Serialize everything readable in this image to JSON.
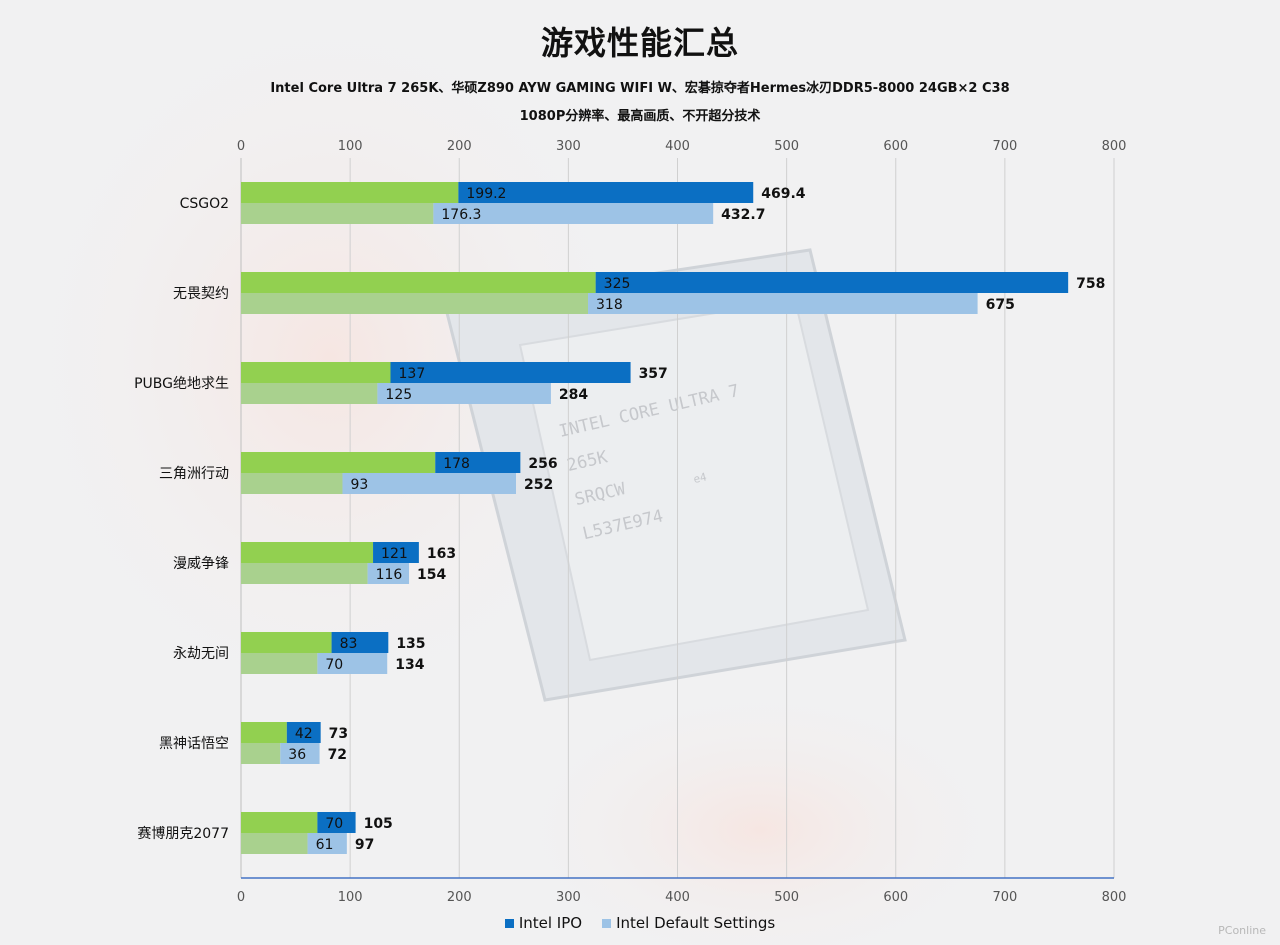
{
  "page": {
    "title": "游戏性能汇总",
    "subtitle_line1": "Intel Core Ultra 7 265K、华硕Z890 AYW GAMING WIFI W、宏碁掠夺者Hermes冰刃DDR5-8000 24GB×2 C38",
    "subtitle_line2": "1080P分辨率、最高画质、不开超分技术",
    "watermark": "PConline",
    "photo_text": [
      "INTEL CORE ULTRA 7",
      "265K",
      "SRQCW",
      "L537E974",
      "e4"
    ]
  },
  "colors": {
    "green_ipo": "#92d050",
    "green_default": "#a9d18e",
    "blue_ipo": "#0b6fc3",
    "blue_default": "#9dc3e6",
    "grid": "#d0d0d0",
    "axis": "#4472c4"
  },
  "chart_data": {
    "type": "bar",
    "orientation": "horizontal",
    "xlim": [
      0,
      800
    ],
    "x_ticks": [
      0,
      100,
      200,
      300,
      400,
      500,
      600,
      700,
      800
    ],
    "grid": true,
    "legend_position": "bottom",
    "categories": [
      "CSGO2",
      "无畏契约",
      "PUBG绝地求生",
      "三角洲行动",
      "漫威争锋",
      "永劫无间",
      "黑神话悟空",
      "赛博朋克2077"
    ],
    "series": [
      {
        "name": "Intel IPO",
        "low": [
          199.2,
          325,
          137,
          178,
          121,
          83,
          42,
          70
        ],
        "high": [
          469.4,
          758,
          357,
          256,
          163,
          135,
          73,
          105
        ]
      },
      {
        "name": "Intel Default Settings",
        "low": [
          176.3,
          318,
          125,
          93,
          116,
          70,
          36,
          61
        ],
        "high": [
          432.7,
          675,
          284,
          252,
          154,
          134,
          72,
          97
        ]
      }
    ]
  }
}
